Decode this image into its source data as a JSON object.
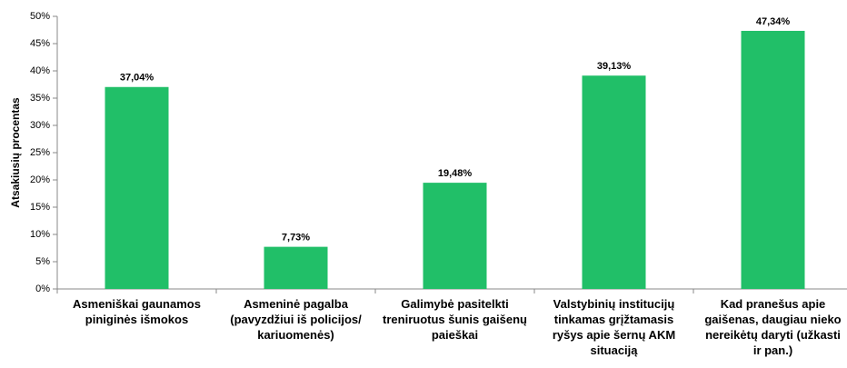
{
  "chart_data": {
    "type": "bar",
    "y_label": "Atsakiusių procentas",
    "categories": [
      "Asmeniškai gaunamos piniginės išmokos",
      "Asmeninė pagalba (pavyzdžiui iš policijos/ kariuomenės)",
      "Galimybė pasitelkti treniruotus šunis gaišenų paieškai",
      "Valstybinių institucijų tinkamas grįžtamasis ryšys apie šernų AKM situaciją",
      "Kad pranešus apie gaišenas, daugiau nieko nereikėtų daryti (užkasti ir pan.)"
    ],
    "values": [
      37.04,
      7.73,
      19.48,
      39.13,
      47.34
    ],
    "value_labels": [
      "37,04%",
      "7,73%",
      "19,48%",
      "39,13%",
      "47,34%"
    ],
    "color": "#21bf68",
    "ylim": [
      0,
      50
    ],
    "yticks": [
      {
        "value": 0,
        "label": "0%"
      },
      {
        "value": 5,
        "label": "5%"
      },
      {
        "value": 10,
        "label": "10%"
      },
      {
        "value": 15,
        "label": "15%"
      },
      {
        "value": 20,
        "label": "20%"
      },
      {
        "value": 25,
        "label": "25%"
      },
      {
        "value": 30,
        "label": "30%"
      },
      {
        "value": 35,
        "label": "35%"
      },
      {
        "value": 40,
        "label": "40%"
      },
      {
        "value": 45,
        "label": "45%"
      },
      {
        "value": 50,
        "label": "50%"
      }
    ],
    "grid": false
  }
}
